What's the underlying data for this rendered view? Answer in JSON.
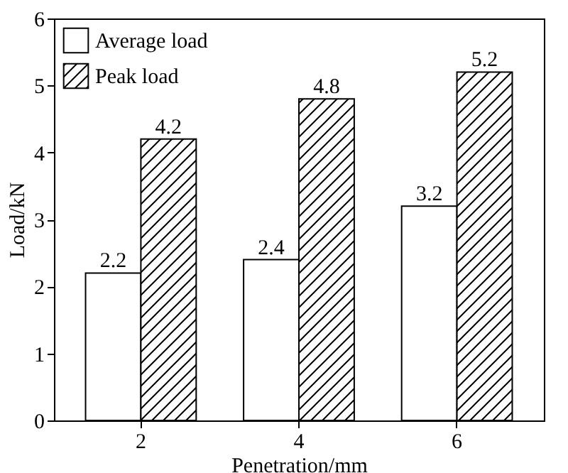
{
  "chart_data": {
    "type": "bar",
    "xlabel": "Penetration/mm",
    "ylabel": "Load/kN",
    "categories": [
      "2",
      "4",
      "6"
    ],
    "series": [
      {
        "name": "Average load",
        "color": "#ffffff",
        "values": [
          2.2,
          2.4,
          3.2
        ]
      },
      {
        "name": "Peak load",
        "color": "#000000",
        "values": [
          4.2,
          4.8,
          5.2
        ]
      }
    ],
    "ylim": [
      0,
      6
    ],
    "yticks": [
      0,
      1,
      2,
      3,
      4,
      5,
      6
    ],
    "data_labels": true,
    "legend": "top left",
    "grid": false
  }
}
